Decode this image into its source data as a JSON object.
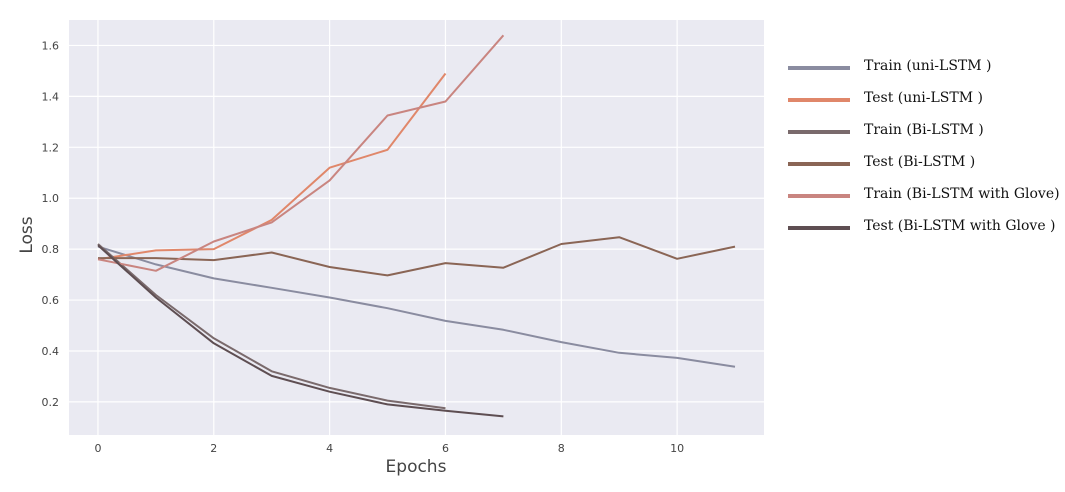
{
  "chart_data": {
    "type": "line",
    "xlabel": "Epochs",
    "ylabel": "Loss",
    "xlim": [
      -0.5,
      11.5
    ],
    "ylim": [
      0.07,
      1.7
    ],
    "xticks": [
      0,
      2,
      4,
      6,
      8,
      10
    ],
    "yticks": [
      0.2,
      0.4,
      0.6,
      0.8,
      1.0,
      1.2,
      1.4,
      1.6
    ],
    "grid": true,
    "legend_position": "right, outside plot",
    "series": [
      {
        "name": "Train (uni-LSTM )",
        "color": "#8a8ca0",
        "x": [
          0,
          1,
          2,
          3,
          4,
          5,
          6,
          7,
          8,
          9,
          10,
          11
        ],
        "y": [
          0.81,
          0.74,
          0.685,
          0.648,
          0.61,
          0.568,
          0.518,
          0.483,
          0.435,
          0.393,
          0.373,
          0.338
        ]
      },
      {
        "name": "Test (uni-LSTM )",
        "color": "#e0876a",
        "x": [
          0,
          1,
          2,
          3,
          4,
          5,
          6
        ],
        "y": [
          0.76,
          0.795,
          0.8,
          0.915,
          1.12,
          1.19,
          1.49
        ]
      },
      {
        "name": "Train (Bi-LSTM )",
        "color": "#7a6a6c",
        "x": [
          0,
          1,
          2,
          3,
          4,
          5,
          6
        ],
        "y": [
          0.82,
          0.62,
          0.45,
          0.32,
          0.255,
          0.205,
          0.175
        ]
      },
      {
        "name": "Test (Bi-LSTM )",
        "color": "#8a6555",
        "x": [
          0,
          1,
          2,
          3,
          4,
          5,
          6,
          7,
          8,
          9,
          10,
          11
        ],
        "y": [
          0.765,
          0.765,
          0.757,
          0.787,
          0.73,
          0.697,
          0.745,
          0.727,
          0.82,
          0.847,
          0.762,
          0.81
        ]
      },
      {
        "name": "Train (Bi-LSTM with Glove)",
        "color": "#c98580",
        "x": [
          0,
          1,
          2,
          3,
          4,
          5,
          6,
          7
        ],
        "y": [
          0.76,
          0.715,
          0.83,
          0.905,
          1.07,
          1.325,
          1.38,
          1.64
        ]
      },
      {
        "name": "Test (Bi-LSTM with Glove )",
        "color": "#5e4e52",
        "x": [
          0,
          1,
          2,
          3,
          4,
          5,
          6,
          7
        ],
        "y": [
          0.815,
          0.61,
          0.43,
          0.302,
          0.24,
          0.19,
          0.165,
          0.143
        ]
      }
    ]
  }
}
